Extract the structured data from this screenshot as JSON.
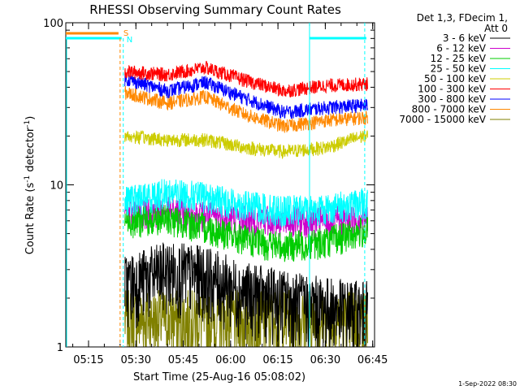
{
  "chart_data": {
    "type": "line",
    "title": "RHESSI Observing Summary Count Rates",
    "xlabel": "Start Time (25-Aug-16 05:08:02)",
    "ylabel": "Count Rate (s⁻¹ detector⁻¹)",
    "ylabel_main": "Count Rate (s",
    "ylabel_sup1": "-1",
    "ylabel_mid": " detector",
    "ylabel_sup2": "-1",
    "ylabel_end": ")",
    "yscale": "log",
    "ylim": [
      1,
      100
    ],
    "xlim_minutes": [
      5.13,
      6.76
    ],
    "x_ticks": [
      "05:15",
      "05:30",
      "05:45",
      "06:00",
      "06:15",
      "06:30",
      "06:45"
    ],
    "y_ticks": [
      "1",
      "10",
      "100"
    ],
    "legend_header": [
      "Det 1,3, FDecim 1,",
      "Att 0"
    ],
    "legend_position": "right",
    "series": [
      {
        "name": "3 - 6 keV",
        "color": "#000000",
        "values": [
          2.5,
          3.0,
          2.8,
          2.2,
          2.0,
          1.8,
          1.7
        ]
      },
      {
        "name": "6 - 12 keV",
        "color": "#cc00cc",
        "values": [
          6.8,
          6.9,
          6.5,
          6.2,
          6.0,
          6.0,
          6.2
        ]
      },
      {
        "name": "12 - 25 keV",
        "color": "#00cc00",
        "values": [
          6.0,
          6.2,
          5.5,
          4.6,
          4.2,
          4.5,
          5.2
        ]
      },
      {
        "name": "25 - 50 keV",
        "color": "#00ffff",
        "values": [
          8.0,
          9.0,
          8.5,
          7.5,
          7.0,
          7.2,
          7.8
        ]
      },
      {
        "name": "50 - 100 keV",
        "color": "#cccc00",
        "values": [
          20,
          19,
          19,
          17,
          16,
          17,
          20
        ]
      },
      {
        "name": "100 - 300 keV",
        "color": "#ff0000",
        "values": [
          50,
          48,
          53,
          44,
          38,
          41,
          42
        ]
      },
      {
        "name": "300 - 800 keV",
        "color": "#0000ff",
        "values": [
          45,
          38,
          43,
          34,
          28,
          30,
          31
        ]
      },
      {
        "name": "800 - 7000 keV",
        "color": "#ff8800",
        "values": [
          37,
          32,
          35,
          27,
          23,
          25,
          26
        ]
      },
      {
        "name": "7000 - 15000 keV",
        "color": "#808000",
        "values": [
          1.5,
          1.5,
          1.5,
          1.5,
          1.5,
          1.5,
          1.5
        ]
      }
    ],
    "x_sample_times": [
      "05:27",
      "05:40",
      "05:52",
      "06:05",
      "06:17",
      "06:30",
      "06:42"
    ],
    "flags": [
      {
        "label": "S",
        "color": "#ff8800"
      },
      {
        "label": "N",
        "color": "#00ffff"
      }
    ],
    "footer_date": "1-Sep-2022 08:30"
  }
}
